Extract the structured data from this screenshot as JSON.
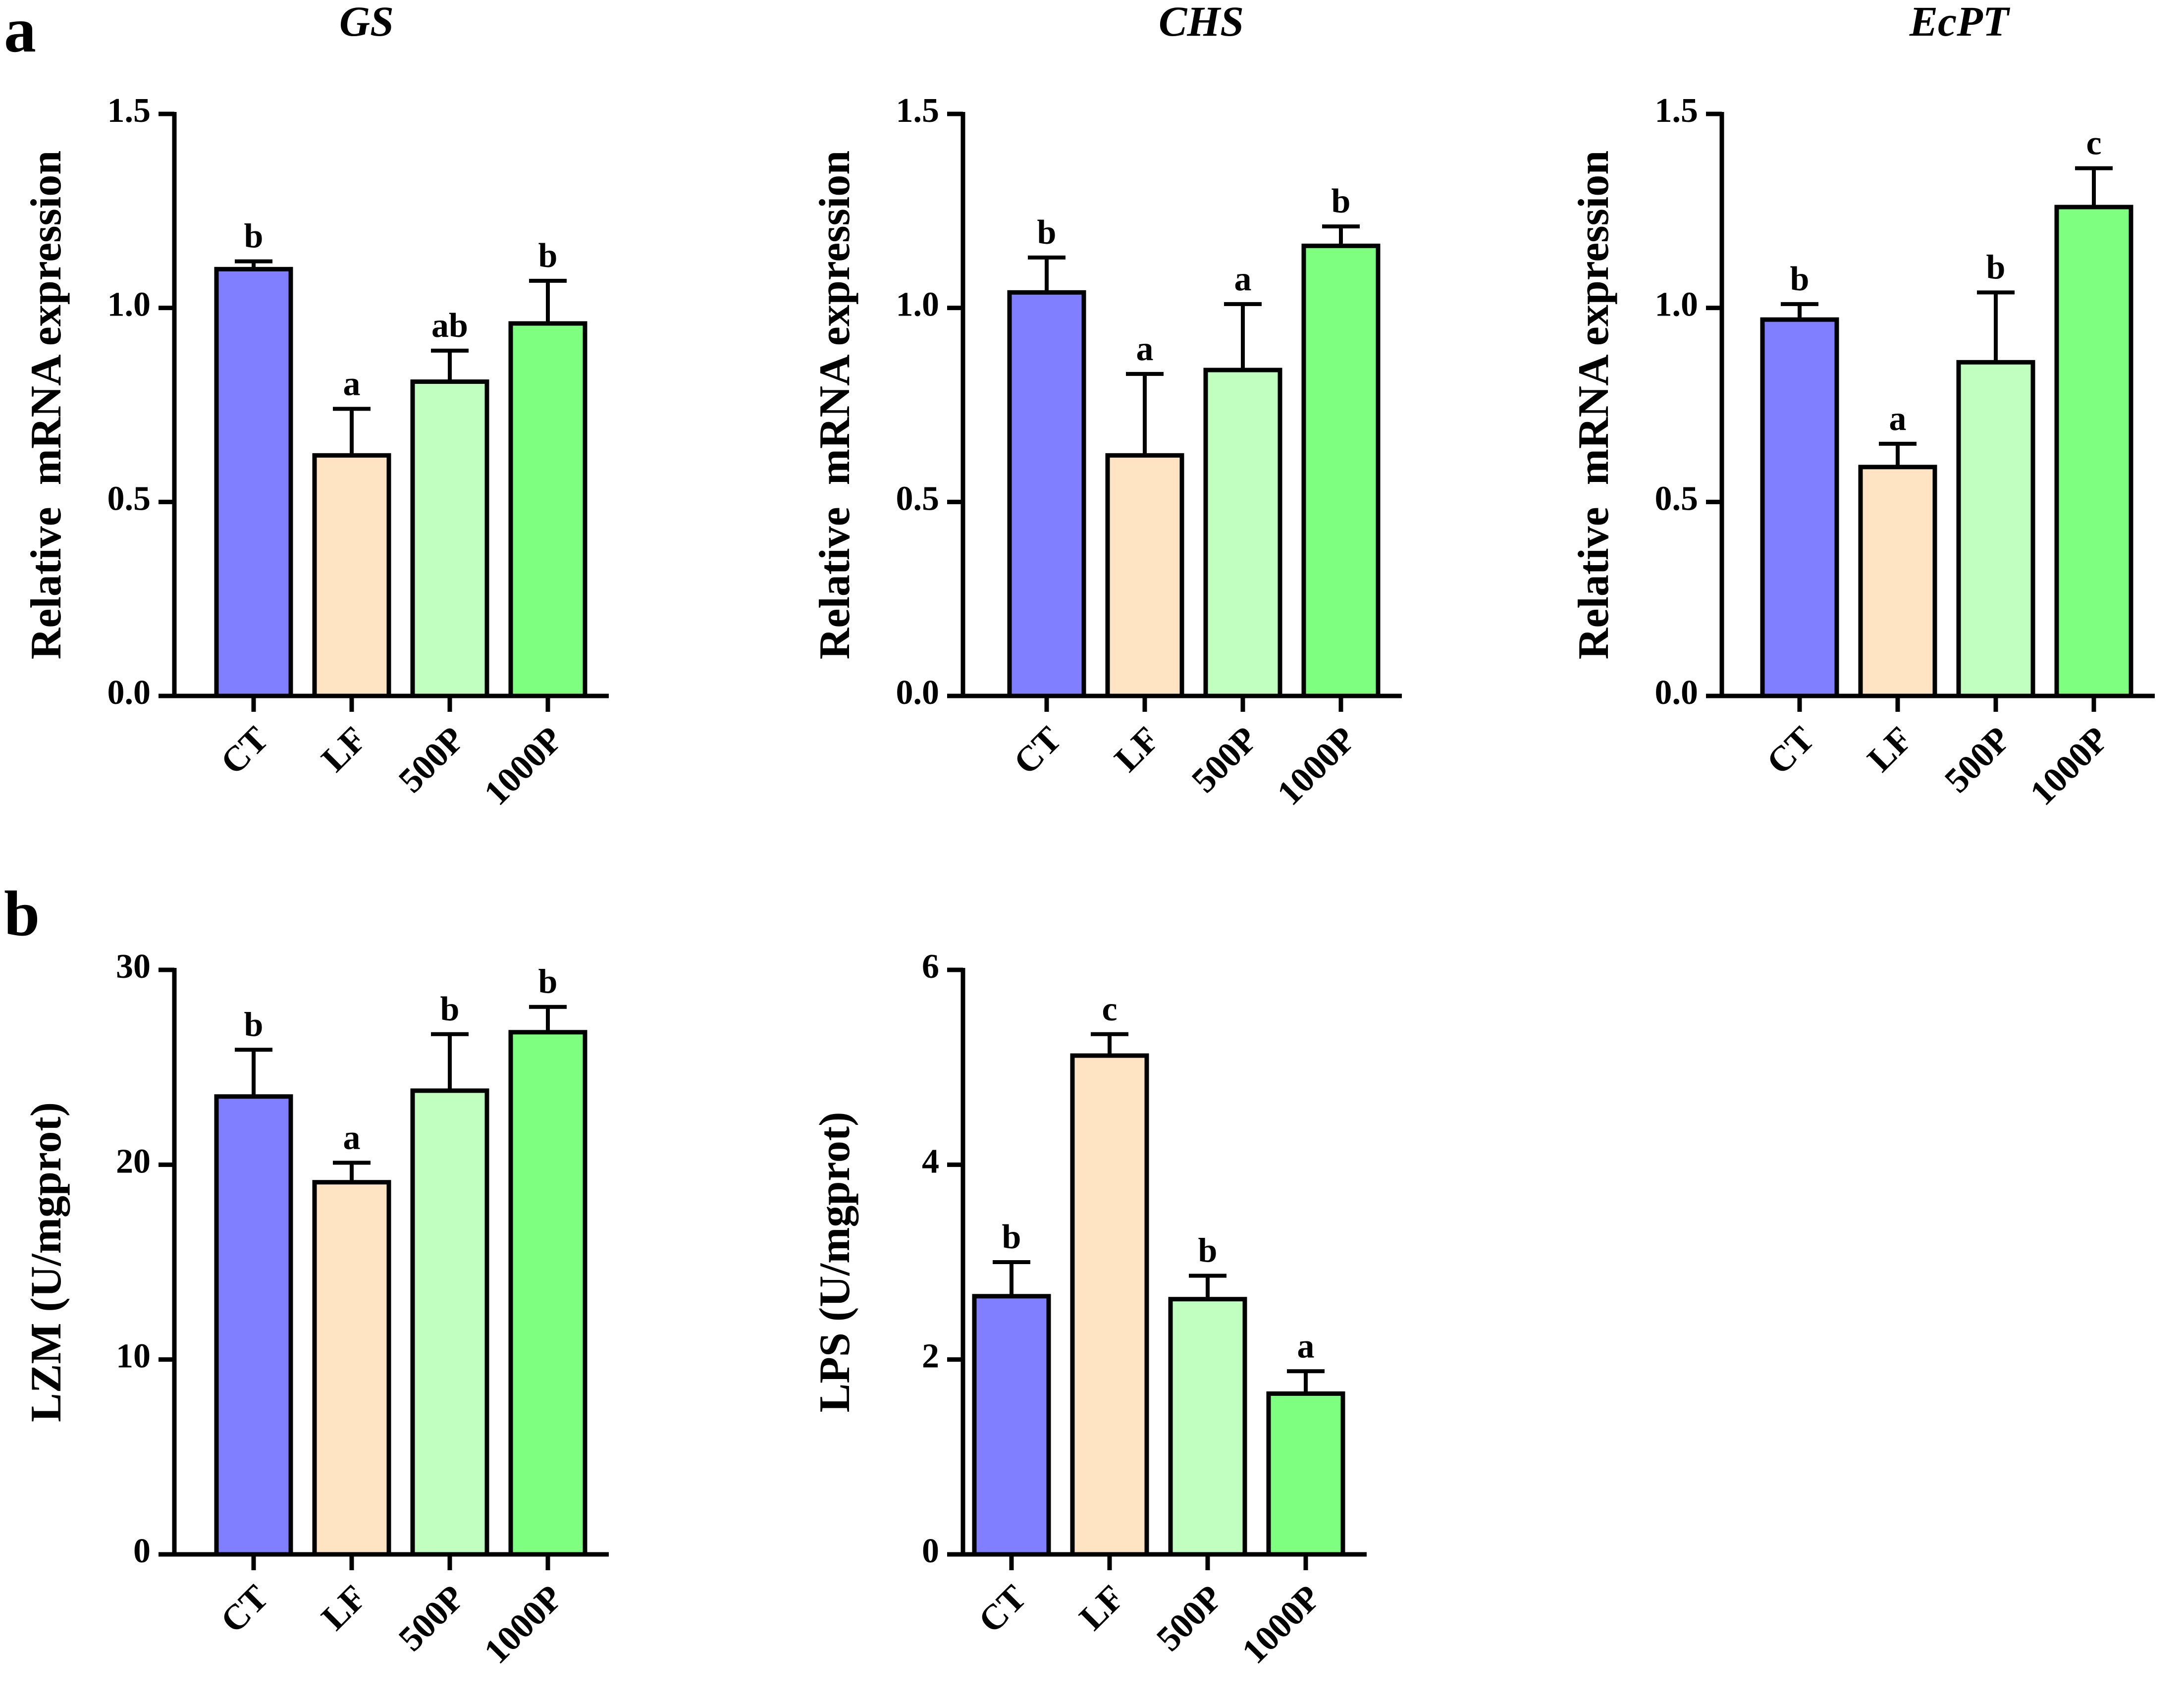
{
  "panel_labels": {
    "a": "a",
    "b": "b"
  },
  "colors": {
    "CT": "#7f7fff",
    "LF": "#ffe4c4",
    "500P": "#c1ffc1",
    "1000P": "#7fff7f"
  },
  "chart_data": [
    {
      "type": "bar",
      "title": "GS",
      "xlabel": "",
      "ylabel": "Relative  mRNA expression",
      "categories": [
        "CT",
        "LF",
        "500P",
        "1000P"
      ],
      "values": [
        1.1,
        0.62,
        0.81,
        0.96
      ],
      "errors": [
        0.02,
        0.12,
        0.08,
        0.11
      ],
      "significance": [
        "b",
        "a",
        "ab",
        "b"
      ],
      "ylim": [
        0,
        1.5
      ],
      "yticks": [
        0.0,
        0.5,
        1.0,
        1.5
      ],
      "ytick_labels": [
        "0.0",
        "0.5",
        "1.0",
        "1.5"
      ]
    },
    {
      "type": "bar",
      "title": "CHS",
      "xlabel": "",
      "ylabel": "Relative  mRNA expression",
      "categories": [
        "CT",
        "LF",
        "500P",
        "1000P"
      ],
      "values": [
        1.04,
        0.62,
        0.84,
        1.16
      ],
      "errors": [
        0.09,
        0.21,
        0.17,
        0.05
      ],
      "significance": [
        "b",
        "a",
        "a",
        "b"
      ],
      "ylim": [
        0,
        1.5
      ],
      "yticks": [
        0.0,
        0.5,
        1.0,
        1.5
      ],
      "ytick_labels": [
        "0.0",
        "0.5",
        "1.0",
        "1.5"
      ]
    },
    {
      "type": "bar",
      "title": "EcPT",
      "xlabel": "",
      "ylabel": "Relative  mRNA expression",
      "categories": [
        "CT",
        "LF",
        "500P",
        "1000P"
      ],
      "values": [
        0.97,
        0.59,
        0.86,
        1.26
      ],
      "errors": [
        0.04,
        0.06,
        0.18,
        0.1
      ],
      "significance": [
        "b",
        "a",
        "b",
        "c"
      ],
      "ylim": [
        0,
        1.5
      ],
      "yticks": [
        0.0,
        0.5,
        1.0,
        1.5
      ],
      "ytick_labels": [
        "0.0",
        "0.5",
        "1.0",
        "1.5"
      ]
    },
    {
      "type": "bar",
      "title": "",
      "xlabel": "",
      "ylabel": "LZM (U/mgprot)",
      "categories": [
        "CT",
        "LF",
        "500P",
        "1000P"
      ],
      "values": [
        23.5,
        19.1,
        23.8,
        26.8
      ],
      "errors": [
        2.4,
        1.0,
        2.9,
        1.3
      ],
      "significance": [
        "b",
        "a",
        "b",
        "b"
      ],
      "ylim": [
        0,
        30
      ],
      "yticks": [
        0,
        10,
        20,
        30
      ],
      "ytick_labels": [
        "0",
        "10",
        "20",
        "30"
      ]
    },
    {
      "type": "bar",
      "title": "",
      "xlabel": "",
      "ylabel": "LPS (U/mgprot)",
      "categories": [
        "CT",
        "LF",
        "500P",
        "1000P"
      ],
      "values": [
        2.65,
        5.12,
        2.62,
        1.65
      ],
      "errors": [
        0.35,
        0.22,
        0.24,
        0.23
      ],
      "significance": [
        "b",
        "c",
        "b",
        "a"
      ],
      "ylim": [
        0,
        6
      ],
      "yticks": [
        0,
        2,
        4,
        6
      ],
      "ytick_labels": [
        "0",
        "2",
        "4",
        "6"
      ]
    }
  ]
}
